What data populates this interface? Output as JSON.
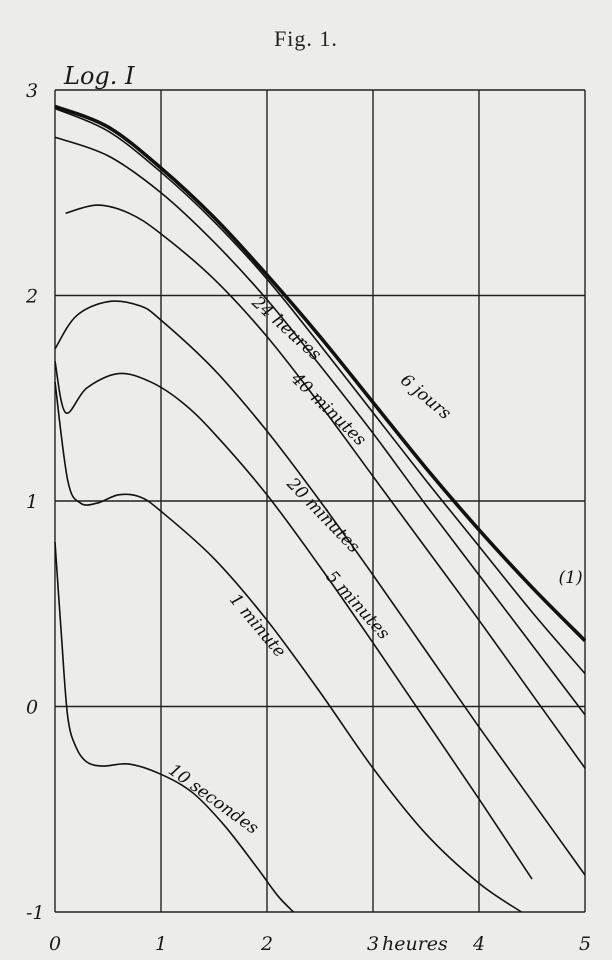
{
  "figure_title": "Fig. 1.",
  "chart_data": {
    "type": "line",
    "ylabel": "Log. I",
    "xlabel": "heures",
    "xlim": [
      0,
      5
    ],
    "ylim": [
      -1,
      3
    ],
    "grid": true,
    "x_ticks": [
      "0",
      "1",
      "2",
      "3",
      "4",
      "5"
    ],
    "y_ticks": [
      "3",
      "2",
      "1",
      "0",
      "-1"
    ],
    "annotation": "(1)",
    "series": [
      {
        "name": "6 jours",
        "thick": true,
        "x": [
          0,
          0.5,
          1,
          1.5,
          2,
          2.5,
          3,
          3.5,
          4,
          4.5,
          5
        ],
        "y": [
          2.92,
          2.82,
          2.62,
          2.38,
          2.1,
          1.8,
          1.48,
          1.16,
          0.86,
          0.58,
          0.32
        ]
      },
      {
        "name": "24 heures",
        "thick": false,
        "x": [
          0,
          0.5,
          1,
          1.5,
          2,
          2.5,
          3,
          3.5,
          4,
          4.5,
          5
        ],
        "y": [
          2.91,
          2.8,
          2.6,
          2.36,
          2.08,
          1.76,
          1.43,
          1.1,
          0.78,
          0.46,
          0.16
        ]
      },
      {
        "name": "40 minutes",
        "thick": false,
        "x": [
          0,
          0.5,
          1,
          1.5,
          2,
          2.5,
          3,
          3.5,
          4,
          4.5,
          5
        ],
        "y": [
          2.77,
          2.68,
          2.5,
          2.26,
          1.98,
          1.66,
          1.33,
          0.98,
          0.64,
          0.3,
          -0.04
        ]
      },
      {
        "name": "20 minutes",
        "thick": false,
        "x": [
          0.1,
          0.4,
          0.7,
          1,
          1.5,
          2,
          2.5,
          3,
          3.5,
          4,
          4.5,
          5
        ],
        "y": [
          2.4,
          2.44,
          2.4,
          2.3,
          2.08,
          1.8,
          1.47,
          1.12,
          0.77,
          0.42,
          0.06,
          -0.3
        ]
      },
      {
        "name": "5 minutes",
        "thick": false,
        "x": [
          0,
          0.2,
          0.5,
          0.8,
          1,
          1.5,
          2,
          2.5,
          3,
          3.5,
          4,
          4.5,
          5
        ],
        "y": [
          1.74,
          1.9,
          1.97,
          1.95,
          1.88,
          1.64,
          1.34,
          1.0,
          0.64,
          0.27,
          -0.1,
          -0.46,
          -0.82
        ]
      },
      {
        "name": "1 minute",
        "thick": false,
        "x": [
          0,
          0.1,
          0.3,
          0.6,
          0.9,
          1.2,
          1.5,
          2,
          2.5,
          3,
          3.5,
          4,
          4.5
        ],
        "y": [
          1.68,
          1.43,
          1.55,
          1.62,
          1.58,
          1.48,
          1.33,
          1.03,
          0.68,
          0.31,
          -0.07,
          -0.45,
          -0.84
        ]
      },
      {
        "name": "",
        "thick": false,
        "x": [
          0,
          0.12,
          0.24,
          0.4,
          0.6,
          0.8,
          1.0,
          1.5,
          2,
          2.5,
          3,
          3.5,
          4,
          4.4
        ],
        "y": [
          1.58,
          1.1,
          0.99,
          0.99,
          1.03,
          1.02,
          0.95,
          0.72,
          0.42,
          0.07,
          -0.3,
          -0.62,
          -0.86,
          -1.0
        ]
      },
      {
        "name": "10 secondes",
        "thick": false,
        "x": [
          0,
          0.06,
          0.12,
          0.2,
          0.3,
          0.45,
          0.7,
          1.0,
          1.3,
          1.6,
          1.9,
          2.1,
          2.25
        ],
        "y": [
          0.8,
          0.35,
          -0.05,
          -0.2,
          -0.27,
          -0.29,
          -0.28,
          -0.33,
          -0.42,
          -0.58,
          -0.78,
          -0.92,
          -1.0
        ]
      }
    ],
    "labels": [
      {
        "text": "6 jours",
        "x": 3.25,
        "y": 1.58,
        "rot": 40
      },
      {
        "text": "24 heures",
        "x": 1.85,
        "y": 1.96,
        "rot": 42
      },
      {
        "text": "40 minutes",
        "x": 2.22,
        "y": 1.59,
        "rot": 44
      },
      {
        "text": "20 minutes",
        "x": 2.18,
        "y": 1.08,
        "rot": 46
      },
      {
        "text": "5 minutes",
        "x": 2.55,
        "y": 0.63,
        "rot": 48
      },
      {
        "text": "1 minute",
        "x": 1.64,
        "y": 0.52,
        "rot": 50
      },
      {
        "text": "10 secondes",
        "x": 1.06,
        "y": -0.32,
        "rot": 36
      }
    ],
    "annotation_pos": {
      "x": 4.75,
      "y": 0.6
    }
  }
}
